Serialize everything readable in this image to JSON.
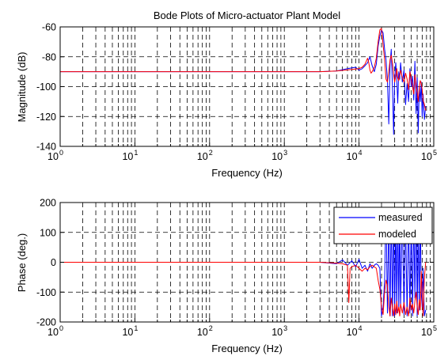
{
  "chart_data": [
    {
      "type": "line",
      "title": "Bode Plots of Micro-actuator Plant Model",
      "xlabel": "Frequency (Hz)",
      "ylabel": "Magnitude (dB)",
      "xscale": "log",
      "xlim": [
        1,
        100000
      ],
      "ylim": [
        -140,
        -60
      ],
      "x_tick_labels": [
        {
          "base": "10",
          "exp": "0"
        },
        {
          "base": "10",
          "exp": "1"
        },
        {
          "base": "10",
          "exp": "2"
        },
        {
          "base": "10",
          "exp": "3"
        },
        {
          "base": "10",
          "exp": "4"
        },
        {
          "base": "10",
          "exp": "5"
        }
      ],
      "y_ticks": [
        -60,
        -80,
        -100,
        -120,
        -140
      ],
      "grid": "dashed",
      "legend": "none",
      "series": [
        {
          "color": "#0000ff",
          "x": [
            1,
            10,
            100,
            1000,
            3000,
            5000,
            7000,
            9000,
            10000,
            11000,
            12000,
            13000,
            14000,
            15000,
            16000,
            17000,
            18000,
            19000,
            20000,
            21000,
            22000,
            23000,
            24000,
            25000,
            26000,
            27000,
            28000,
            29000,
            30000,
            31000,
            32000,
            33000,
            34000,
            35000,
            36000,
            38000,
            40000,
            42000,
            44000,
            46000,
            48000,
            50000,
            52000,
            54000,
            56000,
            58000,
            60000,
            62000,
            64000,
            66000,
            68000,
            70000,
            72000,
            75000,
            78000
          ],
          "y": [
            -90,
            -90,
            -90,
            -90,
            -90,
            -89.5,
            -88,
            -87,
            -89,
            -88,
            -86,
            -84,
            -80,
            -86,
            -90,
            -85,
            -73,
            -66,
            -62,
            -64,
            -75,
            -82,
            -96,
            -125,
            -85,
            -75,
            -100,
            -132,
            -95,
            -84,
            -95,
            -111,
            -90,
            -95,
            -84,
            -97,
            -89,
            -112,
            -98,
            -110,
            -88,
            -100,
            -93,
            -109,
            -83,
            -118,
            -94,
            -131,
            -100,
            -110,
            -97,
            -120,
            -105,
            -122,
            -113
          ]
        },
        {
          "color": "#ff0000",
          "x": [
            1,
            10,
            100,
            1000,
            3000,
            5000,
            8000,
            10000,
            11000,
            12000,
            12500,
            13000,
            13500,
            14000,
            14500,
            15000,
            16000,
            17000,
            18000,
            19000,
            20000,
            21000,
            22000,
            23000,
            24000,
            25000,
            26000,
            27000,
            28000,
            29000,
            30000,
            31000,
            32000,
            33000,
            34000,
            35000,
            36000,
            38000,
            40000,
            42000,
            44000,
            46000,
            48000,
            50000,
            52000,
            54000,
            56000,
            58000,
            60000,
            62000,
            64000,
            66000,
            68000,
            70000,
            72000,
            75000,
            78000
          ],
          "y": [
            -90,
            -90,
            -90,
            -90,
            -90,
            -89.5,
            -88.5,
            -88,
            -87,
            -85,
            -83,
            -81,
            -84,
            -89,
            -91,
            -90,
            -87,
            -81,
            -70,
            -62,
            -61,
            -72,
            -82,
            -95,
            -97,
            -90,
            -82,
            -79,
            -84,
            -92,
            -97,
            -93,
            -88,
            -94,
            -96,
            -92,
            -89,
            -94,
            -97,
            -91,
            -95,
            -102,
            -90,
            -95,
            -100,
            -105,
            -92,
            -99,
            -104,
            -110,
            -100,
            -96,
            -98,
            -102,
            -109,
            -112,
            -116
          ]
        }
      ]
    },
    {
      "type": "line",
      "xlabel": "Frequency (Hz)",
      "ylabel": "Phase (deg.)",
      "xscale": "log",
      "xlim": [
        1,
        100000
      ],
      "ylim": [
        -200,
        200
      ],
      "x_tick_labels": [
        {
          "base": "10",
          "exp": "0"
        },
        {
          "base": "10",
          "exp": "1"
        },
        {
          "base": "10",
          "exp": "2"
        },
        {
          "base": "10",
          "exp": "3"
        },
        {
          "base": "10",
          "exp": "4"
        },
        {
          "base": "10",
          "exp": "5"
        }
      ],
      "y_ticks": [
        200,
        100,
        0,
        -100,
        -200
      ],
      "grid": "dashed",
      "legend": "top-right",
      "series": [
        {
          "name": "measured",
          "color": "#0000ff",
          "x": [
            1,
            10,
            100,
            1000,
            3000,
            5000,
            6000,
            7000,
            8000,
            9000,
            10000,
            11000,
            12000,
            13000,
            14000,
            15000,
            16000,
            17000,
            18000,
            19000,
            20000,
            21000,
            22000,
            23000,
            24000,
            25000,
            26000,
            27000,
            28000,
            29000,
            30000,
            31000,
            32000,
            33000,
            34000,
            35000,
            36000,
            38000,
            40000,
            42000,
            44000,
            46000,
            48000,
            50000,
            52000,
            54000,
            56000,
            58000,
            60000,
            62000,
            64000,
            66000,
            68000,
            70000,
            72000,
            75000,
            78000
          ],
          "y": [
            0,
            0,
            0,
            0,
            0,
            -5,
            8,
            -10,
            5,
            -15,
            10,
            -20,
            -10,
            -30,
            -5,
            -20,
            -10,
            -5,
            -10,
            -20,
            -180,
            -150,
            -60,
            180,
            -170,
            170,
            -180,
            175,
            -180,
            170,
            -180,
            160,
            -170,
            180,
            -160,
            180,
            -150,
            170,
            -175,
            160,
            -180,
            170,
            -170,
            150,
            -180,
            160,
            -120,
            180,
            -180,
            140,
            -160,
            170,
            -100,
            -150,
            -20,
            -180,
            -160
          ]
        },
        {
          "name": "modeled",
          "color": "#ff0000",
          "x": [
            1,
            10,
            100,
            1000,
            3000,
            5000,
            6000,
            7000,
            7300,
            7600,
            8000,
            9000,
            10000,
            11000,
            12000,
            13000,
            14000,
            15000,
            16000,
            17000,
            18000,
            19000,
            20000,
            21000,
            22000,
            23000,
            24000,
            25000,
            26000,
            27000,
            28000,
            29000,
            30000,
            31000,
            32000,
            33000,
            34000,
            35000,
            36000,
            38000,
            40000,
            42000,
            44000,
            46000,
            48000,
            50000,
            52000,
            54000,
            56000,
            58000,
            60000,
            62000,
            64000,
            66000,
            68000,
            70000,
            72000,
            75000,
            78000
          ],
          "y": [
            0,
            0,
            0,
            0,
            0,
            -3,
            -5,
            -10,
            -135,
            -20,
            -15,
            -10,
            -20,
            -30,
            -20,
            -25,
            -15,
            -10,
            -15,
            -20,
            -60,
            -90,
            -150,
            -175,
            -100,
            -60,
            -80,
            -150,
            -180,
            -120,
            -150,
            -180,
            -140,
            -175,
            -130,
            -170,
            -150,
            -180,
            -140,
            -170,
            -135,
            -175,
            -150,
            -180,
            -120,
            -160,
            -140,
            -170,
            -130,
            -100,
            -150,
            -175,
            -125,
            -160,
            -30,
            -100,
            -180,
            -50,
            0
          ]
        }
      ]
    }
  ]
}
